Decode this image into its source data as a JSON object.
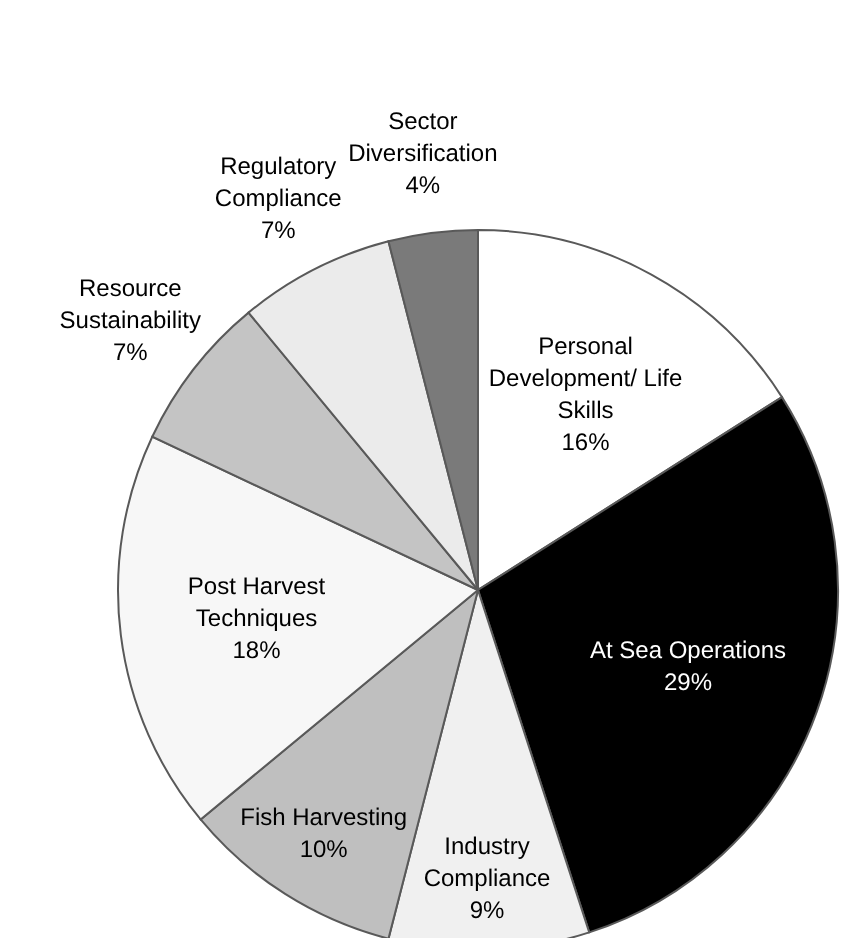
{
  "chart_data": {
    "type": "pie",
    "categories": [
      "Personal Development/ Life Skills",
      "At Sea Operations",
      "Industry Compliance",
      "Fish Harvesting",
      "Post Harvest Techniques",
      "Resource Sustainability",
      "Regulatory Compliance",
      "Sector Diversification"
    ],
    "values": [
      16,
      29,
      9,
      10,
      18,
      7,
      7,
      4
    ],
    "colors": [
      "#ffffff",
      "#000000",
      "#f0f0f0",
      "#bfbfbf",
      "#f7f7f7",
      "#c4c4c4",
      "#ebebeb",
      "#7a7a7a"
    ],
    "value_labels": [
      "16%",
      "29%",
      "9%",
      "10%",
      "18%",
      "7%",
      "7%",
      "4%"
    ]
  }
}
